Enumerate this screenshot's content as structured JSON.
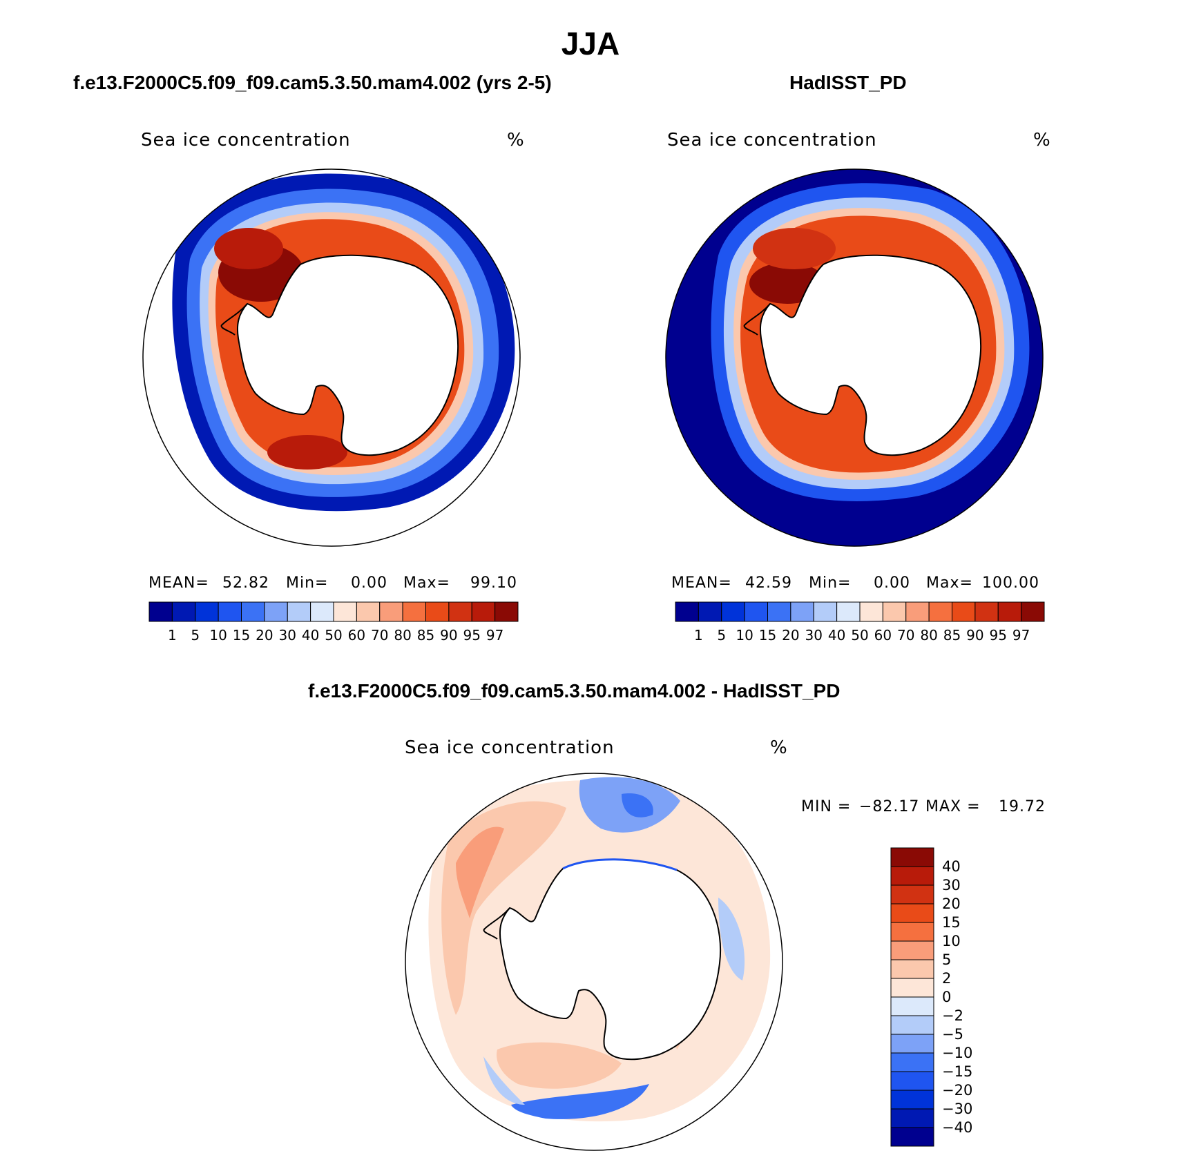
{
  "figure": {
    "title": "JJA"
  },
  "panels": [
    {
      "title": "f.e13.F2000C5.f09_f09.cam5.3.50.mam4.002 (yrs 2-5)",
      "variable": "Sea ice concentration",
      "units": "%",
      "stats": {
        "mean_label": "MEAN=",
        "mean": "52.82",
        "min_label": "Min=",
        "min": "0.00",
        "max_label": "Max=",
        "max": "99.10"
      }
    },
    {
      "title": "HadISST_PD",
      "variable": "Sea ice concentration",
      "units": "%",
      "stats": {
        "mean_label": "MEAN=",
        "mean": "42.59",
        "min_label": "Min=",
        "min": "0.00",
        "max_label": "Max=",
        "max": "100.00"
      }
    },
    {
      "title": "f.e13.F2000C5.f09_f09.cam5.3.50.mam4.002 - HadISST_PD",
      "variable": "Sea ice concentration",
      "units": "%",
      "stats": {
        "min_label": "MIN =",
        "min": "−82.17",
        "max_label": "MAX =",
        "max": "19.72"
      }
    }
  ],
  "colorbars": {
    "concentration": {
      "labels": [
        "1",
        "5",
        "10",
        "15",
        "20",
        "30",
        "40",
        "50",
        "60",
        "70",
        "80",
        "85",
        "90",
        "95",
        "97"
      ],
      "colors": [
        "#00008f",
        "#0019b3",
        "#0033d9",
        "#1f55f0",
        "#3b72f5",
        "#7da2f7",
        "#b3ccf9",
        "#dce9fb",
        "#fde6d8",
        "#fbc8ad",
        "#f99d7a",
        "#f5703f",
        "#e94b18",
        "#d13212",
        "#b81b0a",
        "#8a0a05"
      ]
    },
    "difference": {
      "labels": [
        "40",
        "30",
        "20",
        "15",
        "10",
        "5",
        "2",
        "0",
        "−2",
        "−5",
        "−10",
        "−15",
        "−20",
        "−30",
        "−40"
      ],
      "colors": [
        "#8a0a05",
        "#b81b0a",
        "#d13212",
        "#e94b18",
        "#f5703f",
        "#f99d7a",
        "#fbc8ad",
        "#fde6d8",
        "#dce9fb",
        "#b3ccf9",
        "#7da2f7",
        "#3b72f5",
        "#1f55f0",
        "#0033d9",
        "#0019b3",
        "#00008f"
      ]
    }
  },
  "map": {
    "projection": "south-polar-stereographic"
  }
}
